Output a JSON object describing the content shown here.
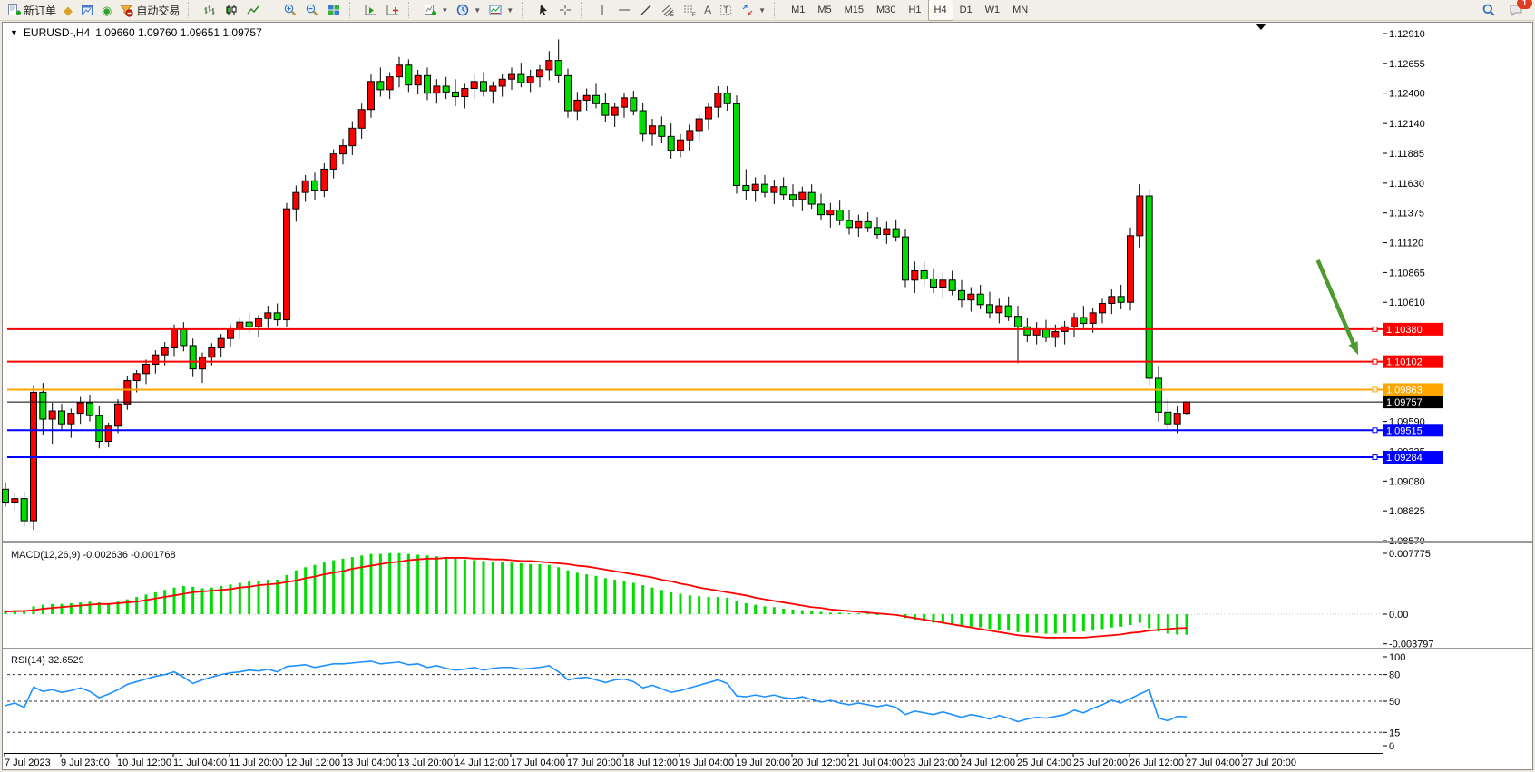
{
  "toolbar": {
    "new_order": "新订单",
    "auto_trading": "自动交易",
    "timeframes": [
      "M1",
      "M5",
      "M15",
      "M30",
      "H1",
      "H4",
      "D1",
      "W1",
      "MN"
    ],
    "active_timeframe": "H4",
    "notification_badge": "1"
  },
  "chart_data": {
    "type": "candlestick",
    "symbol": "EURUSD-",
    "timeframe": "H4",
    "title": "EURUSD-,H4",
    "ohlc_line": "1.09660 1.09760 1.09651 1.09757",
    "bull_color": "#ff0000",
    "bear_color": "#00dc00",
    "y_ticks": [
      "1.12910",
      "1.12655",
      "1.12400",
      "1.12140",
      "1.11885",
      "1.11630",
      "1.11375",
      "1.11120",
      "1.10865",
      "1.10610",
      "1.10355",
      "1.10100",
      "1.09845",
      "1.09590",
      "1.09335",
      "1.09080",
      "1.08825",
      "1.08570"
    ],
    "x_labels": [
      "7 Jul 2023",
      "9 Jul 23:00",
      "10 Jul 12:00",
      "11 Jul 04:00",
      "11 Jul 20:00",
      "12 Jul 12:00",
      "13 Jul 04:00",
      "13 Jul 20:00",
      "14 Jul 12:00",
      "17 Jul 04:00",
      "17 Jul 20:00",
      "18 Jul 12:00",
      "19 Jul 04:00",
      "19 Jul 20:00",
      "20 Jul 12:00",
      "21 Jul 04:00",
      "23 Jul 23:00",
      "24 Jul 12:00",
      "25 Jul 04:00",
      "25 Jul 20:00",
      "26 Jul 12:00",
      "27 Jul 04:00",
      "27 Jul 20:00"
    ],
    "bars_per_label": 6,
    "hlines": [
      {
        "price": 1.1038,
        "color": "#ff0000",
        "width": 2
      },
      {
        "price": 1.10102,
        "color": "#ff0000",
        "width": 2
      },
      {
        "price": 1.09863,
        "color": "#ffa500",
        "width": 2
      },
      {
        "price": 1.09515,
        "color": "#0000ff",
        "width": 2
      },
      {
        "price": 1.09284,
        "color": "#0000ff",
        "width": 2
      }
    ],
    "current_price": {
      "bid": 1.09757,
      "label": "1.09757",
      "color": "#000000"
    },
    "arrow": {
      "color": "#4c9b2e",
      "from": {
        "bar": 140.0,
        "price": 1.1097
      },
      "to": {
        "bar": 144.3,
        "price": 1.1016
      }
    },
    "candles": [
      [
        1.0901,
        1.0907,
        1.0886,
        1.089
      ],
      [
        1.089,
        1.0898,
        1.0883,
        1.0893
      ],
      [
        1.0893,
        1.0899,
        1.0869,
        1.0874
      ],
      [
        1.0874,
        1.099,
        1.0866,
        1.0984
      ],
      [
        1.0984,
        1.0992,
        1.0947,
        1.0961
      ],
      [
        1.0961,
        1.0975,
        1.094,
        1.0968
      ],
      [
        1.0968,
        1.0974,
        1.0951,
        1.0957
      ],
      [
        1.0957,
        1.097,
        1.0945,
        1.0966
      ],
      [
        1.0966,
        1.098,
        1.0957,
        1.0975
      ],
      [
        1.0975,
        1.0982,
        1.0959,
        1.0964
      ],
      [
        1.0964,
        1.0972,
        1.0936,
        1.0942
      ],
      [
        1.0942,
        1.0958,
        1.0937,
        1.0955
      ],
      [
        1.0955,
        1.0978,
        1.0949,
        1.0974
      ],
      [
        1.0974,
        1.0998,
        1.0969,
        1.0994
      ],
      [
        1.0994,
        1.1003,
        1.0984,
        1.1
      ],
      [
        1.1,
        1.1012,
        1.0991,
        1.1008
      ],
      [
        1.1008,
        1.102,
        1.1,
        1.1016
      ],
      [
        1.1016,
        1.1027,
        1.1007,
        1.1022
      ],
      [
        1.1022,
        1.1042,
        1.1015,
        1.1038
      ],
      [
        1.1038,
        1.1044,
        1.1019,
        1.1024
      ],
      [
        1.1024,
        1.103,
        1.0997,
        1.1004
      ],
      [
        1.1004,
        1.1018,
        1.0992,
        1.1014
      ],
      [
        1.1014,
        1.1026,
        1.1007,
        1.1022
      ],
      [
        1.1022,
        1.1034,
        1.1014,
        1.103
      ],
      [
        1.103,
        1.1042,
        1.1023,
        1.1038
      ],
      [
        1.1038,
        1.1048,
        1.1029,
        1.1044
      ],
      [
        1.1044,
        1.1052,
        1.1035,
        1.104
      ],
      [
        1.104,
        1.105,
        1.1031,
        1.1047
      ],
      [
        1.1047,
        1.1058,
        1.1039,
        1.1052
      ],
      [
        1.1052,
        1.106,
        1.1041,
        1.1046
      ],
      [
        1.1046,
        1.1146,
        1.104,
        1.1141
      ],
      [
        1.1141,
        1.1161,
        1.113,
        1.1155
      ],
      [
        1.1155,
        1.117,
        1.1147,
        1.1165
      ],
      [
        1.1165,
        1.1172,
        1.1149,
        1.1157
      ],
      [
        1.1157,
        1.118,
        1.1151,
        1.1175
      ],
      [
        1.1175,
        1.1192,
        1.1167,
        1.1188
      ],
      [
        1.1188,
        1.1201,
        1.1179,
        1.1195
      ],
      [
        1.1195,
        1.1216,
        1.1187,
        1.121
      ],
      [
        1.121,
        1.1231,
        1.1201,
        1.1226
      ],
      [
        1.1226,
        1.1256,
        1.1219,
        1.125
      ],
      [
        1.125,
        1.1262,
        1.1237,
        1.1243
      ],
      [
        1.1243,
        1.1258,
        1.1235,
        1.1254
      ],
      [
        1.1254,
        1.1271,
        1.1245,
        1.1264
      ],
      [
        1.1264,
        1.1269,
        1.1241,
        1.1247
      ],
      [
        1.1247,
        1.126,
        1.1239,
        1.1255
      ],
      [
        1.1255,
        1.1262,
        1.1234,
        1.124
      ],
      [
        1.124,
        1.1252,
        1.1231,
        1.1246
      ],
      [
        1.1246,
        1.1254,
        1.1235,
        1.1241
      ],
      [
        1.1241,
        1.1252,
        1.1229,
        1.1237
      ],
      [
        1.1237,
        1.1248,
        1.1227,
        1.1244
      ],
      [
        1.1244,
        1.1256,
        1.1235,
        1.125
      ],
      [
        1.125,
        1.1258,
        1.1237,
        1.1242
      ],
      [
        1.1242,
        1.125,
        1.1231,
        1.1246
      ],
      [
        1.1246,
        1.1256,
        1.1237,
        1.1252
      ],
      [
        1.1252,
        1.1262,
        1.1243,
        1.1256
      ],
      [
        1.1256,
        1.1266,
        1.1245,
        1.1249
      ],
      [
        1.1249,
        1.126,
        1.1241,
        1.1254
      ],
      [
        1.1254,
        1.1264,
        1.1245,
        1.126
      ],
      [
        1.126,
        1.1276,
        1.1251,
        1.1268
      ],
      [
        1.1268,
        1.1286,
        1.1249,
        1.1255
      ],
      [
        1.1255,
        1.1261,
        1.1219,
        1.1225
      ],
      [
        1.1225,
        1.1241,
        1.1217,
        1.1234
      ],
      [
        1.1234,
        1.1244,
        1.1225,
        1.1238
      ],
      [
        1.1238,
        1.1248,
        1.1227,
        1.1231
      ],
      [
        1.1231,
        1.124,
        1.1215,
        1.1221
      ],
      [
        1.1221,
        1.1232,
        1.1211,
        1.1228
      ],
      [
        1.1228,
        1.124,
        1.1219,
        1.1236
      ],
      [
        1.1236,
        1.1242,
        1.1221,
        1.1225
      ],
      [
        1.1225,
        1.1232,
        1.1199,
        1.1205
      ],
      [
        1.1205,
        1.1218,
        1.1195,
        1.1212
      ],
      [
        1.1212,
        1.122,
        1.1197,
        1.1203
      ],
      [
        1.1203,
        1.1214,
        1.1184,
        1.1191
      ],
      [
        1.1191,
        1.1205,
        1.1185,
        1.12
      ],
      [
        1.12,
        1.1213,
        1.1191,
        1.1208
      ],
      [
        1.1208,
        1.1222,
        1.1199,
        1.1218
      ],
      [
        1.1218,
        1.1232,
        1.1209,
        1.1228
      ],
      [
        1.1228,
        1.1246,
        1.1219,
        1.124
      ],
      [
        1.124,
        1.1246,
        1.1225,
        1.1231
      ],
      [
        1.1231,
        1.1238,
        1.1154,
        1.1161
      ],
      [
        1.1161,
        1.1175,
        1.1149,
        1.1157
      ],
      [
        1.1157,
        1.1168,
        1.1147,
        1.1162
      ],
      [
        1.1162,
        1.117,
        1.1151,
        1.1155
      ],
      [
        1.1155,
        1.1166,
        1.1145,
        1.116
      ],
      [
        1.116,
        1.1168,
        1.1149,
        1.1153
      ],
      [
        1.1153,
        1.1162,
        1.1143,
        1.1149
      ],
      [
        1.1149,
        1.116,
        1.1139,
        1.1155
      ],
      [
        1.1155,
        1.1162,
        1.1141,
        1.1145
      ],
      [
        1.1145,
        1.1154,
        1.1131,
        1.1136
      ],
      [
        1.1136,
        1.1146,
        1.1125,
        1.114
      ],
      [
        1.114,
        1.1148,
        1.1127,
        1.1131
      ],
      [
        1.1131,
        1.114,
        1.1119,
        1.1125
      ],
      [
        1.1125,
        1.1136,
        1.1117,
        1.113
      ],
      [
        1.113,
        1.1138,
        1.1121,
        1.1125
      ],
      [
        1.1125,
        1.1134,
        1.1115,
        1.1119
      ],
      [
        1.1119,
        1.113,
        1.1111,
        1.1124
      ],
      [
        1.1124,
        1.1132,
        1.1113,
        1.1117
      ],
      [
        1.1117,
        1.1124,
        1.1074,
        1.108
      ],
      [
        1.108,
        1.1096,
        1.1069,
        1.1088
      ],
      [
        1.1088,
        1.1096,
        1.1075,
        1.1081
      ],
      [
        1.1081,
        1.109,
        1.1069,
        1.1074
      ],
      [
        1.1074,
        1.1086,
        1.1065,
        1.108
      ],
      [
        1.108,
        1.1088,
        1.1067,
        1.1071
      ],
      [
        1.1071,
        1.108,
        1.1057,
        1.1063
      ],
      [
        1.1063,
        1.1074,
        1.1053,
        1.1068
      ],
      [
        1.1068,
        1.1076,
        1.1055,
        1.1059
      ],
      [
        1.1059,
        1.107,
        1.1047,
        1.1052
      ],
      [
        1.1052,
        1.1064,
        1.1043,
        1.1058
      ],
      [
        1.1058,
        1.1066,
        1.1045,
        1.1049
      ],
      [
        1.1049,
        1.1058,
        1.1009,
        1.104
      ],
      [
        1.104,
        1.1048,
        1.1027,
        1.1033
      ],
      [
        1.1033,
        1.1044,
        1.1025,
        1.1038
      ],
      [
        1.1038,
        1.1046,
        1.1027,
        1.1031
      ],
      [
        1.1031,
        1.1042,
        1.1023,
        1.1036
      ],
      [
        1.1036,
        1.1045,
        1.1025,
        1.104
      ],
      [
        1.104,
        1.1052,
        1.1031,
        1.1048
      ],
      [
        1.1048,
        1.1058,
        1.1039,
        1.1043
      ],
      [
        1.1043,
        1.1056,
        1.1035,
        1.1052
      ],
      [
        1.1052,
        1.1064,
        1.1043,
        1.106
      ],
      [
        1.106,
        1.1072,
        1.1051,
        1.1066
      ],
      [
        1.1066,
        1.1076,
        1.1055,
        1.1061
      ],
      [
        1.1061,
        1.1125,
        1.1054,
        1.1118
      ],
      [
        1.1118,
        1.1162,
        1.1108,
        1.1152
      ],
      [
        1.1152,
        1.1158,
        1.0989,
        1.0996
      ],
      [
        1.0996,
        1.1006,
        1.0959,
        1.0967
      ],
      [
        1.0967,
        1.0978,
        1.0951,
        1.0957
      ],
      [
        1.0957,
        1.0972,
        1.0949,
        1.0966
      ],
      [
        1.0966,
        1.0976,
        1.09651,
        1.09757
      ]
    ],
    "indicators": [
      {
        "name": "MACD",
        "label": "MACD(12,26,9)",
        "values_text": "-0.002636 -0.001768",
        "histogram_color": "#00dc00",
        "signal_color": "#ff0000",
        "y_ticks": [
          "0.007775",
          "0.00",
          "-0.003797"
        ],
        "histogram": [
          0.0004,
          0.0005,
          0.0003,
          0.001,
          0.0012,
          0.0013,
          0.0013,
          0.0014,
          0.0015,
          0.0016,
          0.0015,
          0.0014,
          0.0016,
          0.0019,
          0.0022,
          0.0025,
          0.0028,
          0.0031,
          0.0034,
          0.0036,
          0.0035,
          0.0033,
          0.0034,
          0.0036,
          0.0038,
          0.004,
          0.0042,
          0.0043,
          0.0044,
          0.0044,
          0.005,
          0.0056,
          0.006,
          0.0063,
          0.0066,
          0.0069,
          0.0071,
          0.0073,
          0.0075,
          0.0077,
          0.0077,
          0.0078,
          0.0078,
          0.0077,
          0.0076,
          0.0075,
          0.0074,
          0.0072,
          0.0071,
          0.007,
          0.0069,
          0.0068,
          0.0067,
          0.0067,
          0.0066,
          0.0065,
          0.0064,
          0.0064,
          0.0063,
          0.006,
          0.0056,
          0.0053,
          0.0051,
          0.0049,
          0.0046,
          0.0044,
          0.0042,
          0.004,
          0.0037,
          0.0034,
          0.0031,
          0.0028,
          0.0026,
          0.0024,
          0.0023,
          0.0022,
          0.0022,
          0.0021,
          0.0017,
          0.0014,
          0.0012,
          0.001,
          0.0009,
          0.0007,
          0.0006,
          0.0005,
          0.0004,
          0.0003,
          0.0002,
          0.0002,
          0.0001,
          0.0001,
          0.0001,
          0.0,
          0.0,
          -0.0001,
          -0.0005,
          -0.0007,
          -0.0009,
          -0.0011,
          -0.0012,
          -0.0013,
          -0.0015,
          -0.0016,
          -0.0017,
          -0.0019,
          -0.002,
          -0.0021,
          -0.0023,
          -0.0024,
          -0.0024,
          -0.0025,
          -0.0025,
          -0.0024,
          -0.0023,
          -0.0022,
          -0.0021,
          -0.0019,
          -0.0017,
          -0.0016,
          -0.0014,
          -0.0011,
          -0.0018,
          -0.0022,
          -0.0025,
          -0.0026,
          -0.002636
        ],
        "signal": [
          0.0003,
          0.0004,
          0.0004,
          0.0005,
          0.0007,
          0.0008,
          0.0009,
          0.001,
          0.0011,
          0.0012,
          0.0013,
          0.0013,
          0.0014,
          0.0015,
          0.0016,
          0.0018,
          0.002,
          0.0022,
          0.0024,
          0.0026,
          0.0028,
          0.0029,
          0.003,
          0.0031,
          0.0032,
          0.0034,
          0.0035,
          0.0037,
          0.0038,
          0.0039,
          0.0041,
          0.0043,
          0.0046,
          0.0048,
          0.0051,
          0.0053,
          0.0055,
          0.0058,
          0.006,
          0.0062,
          0.0064,
          0.0066,
          0.0067,
          0.0069,
          0.007,
          0.0071,
          0.0071,
          0.0072,
          0.0072,
          0.0072,
          0.0071,
          0.0071,
          0.007,
          0.007,
          0.0069,
          0.0068,
          0.0068,
          0.0067,
          0.0066,
          0.0065,
          0.0064,
          0.0062,
          0.0061,
          0.0059,
          0.0057,
          0.0055,
          0.0053,
          0.0051,
          0.0049,
          0.0047,
          0.0044,
          0.0042,
          0.0039,
          0.0037,
          0.0034,
          0.0032,
          0.003,
          0.0028,
          0.0026,
          0.0024,
          0.0021,
          0.0019,
          0.0017,
          0.0015,
          0.0013,
          0.0011,
          0.0009,
          0.0008,
          0.0006,
          0.0005,
          0.0004,
          0.0003,
          0.0002,
          0.0001,
          0.0,
          -0.0001,
          -0.0003,
          -0.0005,
          -0.0007,
          -0.0009,
          -0.0011,
          -0.0013,
          -0.0015,
          -0.0017,
          -0.0019,
          -0.0021,
          -0.0023,
          -0.0025,
          -0.0027,
          -0.0028,
          -0.0029,
          -0.003,
          -0.003,
          -0.003,
          -0.003,
          -0.003,
          -0.0029,
          -0.0028,
          -0.0027,
          -0.0026,
          -0.0024,
          -0.0023,
          -0.0021,
          -0.002,
          -0.0019,
          -0.0018,
          -0.001768
        ]
      },
      {
        "name": "RSI",
        "label": "RSI(14)",
        "value_text": "32.6529",
        "color": "#1e90ff",
        "levels": [
          80,
          50,
          15
        ],
        "y_ticks": [
          "100",
          "80",
          "50",
          "15",
          "0"
        ],
        "series": [
          45,
          48,
          43,
          66,
          61,
          63,
          60,
          62,
          65,
          61,
          54,
          58,
          63,
          69,
          72,
          75,
          78,
          80,
          83,
          77,
          70,
          74,
          77,
          80,
          82,
          83,
          85,
          84,
          86,
          83,
          89,
          90,
          91,
          88,
          90,
          92,
          92,
          93,
          94,
          95,
          92,
          93,
          94,
          91,
          92,
          88,
          90,
          87,
          85,
          86,
          88,
          85,
          87,
          88,
          88,
          86,
          87,
          88,
          90,
          83,
          74,
          76,
          77,
          74,
          71,
          74,
          75,
          72,
          65,
          68,
          64,
          60,
          62,
          65,
          68,
          71,
          74,
          70,
          56,
          55,
          57,
          55,
          57,
          54,
          53,
          55,
          52,
          49,
          51,
          48,
          46,
          48,
          46,
          44,
          46,
          43,
          35,
          39,
          37,
          35,
          38,
          35,
          32,
          35,
          33,
          30,
          34,
          31,
          27,
          30,
          32,
          31,
          33,
          35,
          40,
          37,
          42,
          46,
          51,
          48,
          53,
          58,
          63,
          31,
          28,
          33,
          32.65
        ]
      }
    ]
  }
}
